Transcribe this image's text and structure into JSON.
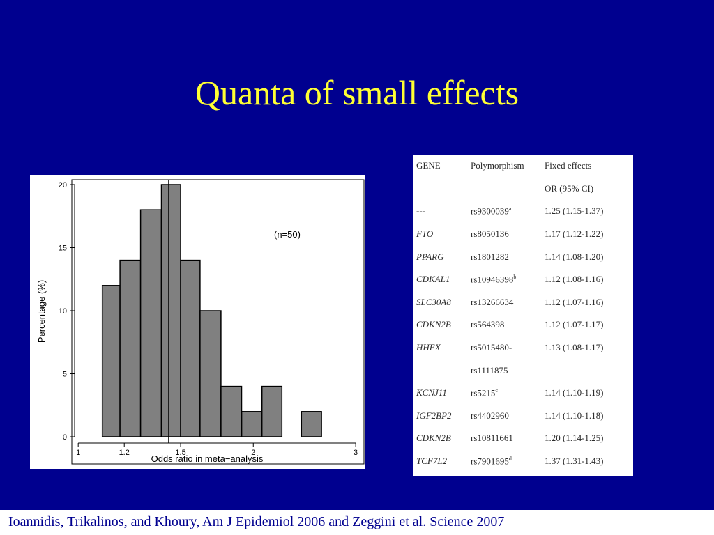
{
  "slide": {
    "title": "Quanta of small effects",
    "footer": "Ioannidis, Trikalinos, and Khoury, Am J Epidemiol 2006 and Zeggini et al. Science 2007",
    "colors": {
      "background": "#00008f",
      "title": "#ffff33",
      "bar_fill": "#808080"
    }
  },
  "chart_data": {
    "type": "bar",
    "variant": "histogram",
    "xlabel": "Odds ratio in meta−analysis",
    "ylabel": "Percentage (%)",
    "annotation": "(n=50)",
    "x_scale": "log",
    "xlim": [
      0.975,
      3.1
    ],
    "ylim": [
      0,
      20
    ],
    "x_ticks": [
      1,
      1.2,
      1.5,
      2,
      3
    ],
    "x_tick_labels": [
      "1",
      "1.2",
      "1.5",
      "2",
      "3"
    ],
    "y_ticks": [
      0,
      5,
      10,
      15,
      20
    ],
    "reference_line_x": 1.43,
    "bins": [
      {
        "start": 1.1,
        "end": 1.18,
        "value": 12
      },
      {
        "start": 1.18,
        "end": 1.28,
        "value": 14
      },
      {
        "start": 1.28,
        "end": 1.39,
        "value": 18
      },
      {
        "start": 1.39,
        "end": 1.5,
        "value": 20
      },
      {
        "start": 1.5,
        "end": 1.62,
        "value": 14
      },
      {
        "start": 1.62,
        "end": 1.76,
        "value": 10
      },
      {
        "start": 1.76,
        "end": 1.91,
        "value": 4
      },
      {
        "start": 1.91,
        "end": 2.07,
        "value": 2
      },
      {
        "start": 2.07,
        "end": 2.24,
        "value": 4
      },
      {
        "start": 2.24,
        "end": 2.42,
        "value": 0
      },
      {
        "start": 2.42,
        "end": 2.62,
        "value": 2
      }
    ],
    "grid": false,
    "legend": "none"
  },
  "gene_table": {
    "headers": [
      "GENE",
      "Polymorphism",
      "Fixed effects"
    ],
    "subheader": "OR (95% CI)",
    "rows": [
      {
        "gene": "---",
        "italic": false,
        "snp": "rs9300039",
        "sup": "a",
        "or": "1.25 (1.15-1.37)"
      },
      {
        "gene": "FTO",
        "italic": true,
        "snp": "rs8050136",
        "sup": "",
        "or": "1.17 (1.12-1.22)"
      },
      {
        "gene": "PPARG",
        "italic": true,
        "snp": "rs1801282",
        "sup": "",
        "or": "1.14 (1.08-1.20)"
      },
      {
        "gene": "CDKAL1",
        "italic": true,
        "snp": "rs10946398",
        "sup": "b",
        "or": "1.12 (1.08-1.16)"
      },
      {
        "gene": "SLC30A8",
        "italic": true,
        "snp": "rs13266634",
        "sup": "",
        "or": "1.12 (1.07-1.16)"
      },
      {
        "gene": "CDKN2B",
        "italic": true,
        "snp": "rs564398",
        "sup": "",
        "or": "1.12 (1.07-1.17)"
      },
      {
        "gene": "HHEX",
        "italic": true,
        "snp": "rs5015480-",
        "sup": "",
        "or": "1.13 (1.08-1.17)"
      },
      {
        "gene": "",
        "italic": false,
        "snp": "rs1111875",
        "sup": "",
        "or": ""
      },
      {
        "gene": "KCNJ11",
        "italic": true,
        "snp": "rs5215",
        "sup": "c",
        "or": "1.14 (1.10-1.19)"
      },
      {
        "gene": "IGF2BP2",
        "italic": true,
        "snp": "rs4402960",
        "sup": "",
        "or": "1.14 (1.10-1.18)"
      },
      {
        "gene": "CDKN2B",
        "italic": true,
        "snp": "rs10811661",
        "sup": "",
        "or": "1.20 (1.14-1.25)"
      },
      {
        "gene": "TCF7L2",
        "italic": true,
        "snp": "rs7901695",
        "sup": "d",
        "or": "1.37 (1.31-1.43)"
      }
    ]
  }
}
